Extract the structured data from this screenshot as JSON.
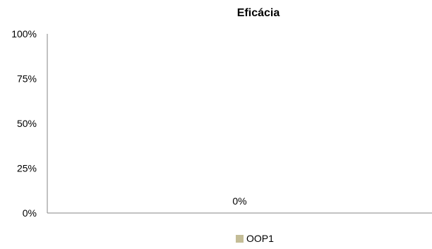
{
  "chart_data": {
    "type": "bar",
    "title": "Eficácia",
    "categories": [
      ""
    ],
    "series": [
      {
        "name": "OOP1",
        "values": [
          0
        ],
        "color": "#c4bd97"
      }
    ],
    "data_labels": [
      "0%"
    ],
    "y_ticks": [
      "0%",
      "25%",
      "50%",
      "75%",
      "100%"
    ],
    "ylim": [
      0,
      1
    ],
    "grid": false,
    "legend": "bottom"
  }
}
